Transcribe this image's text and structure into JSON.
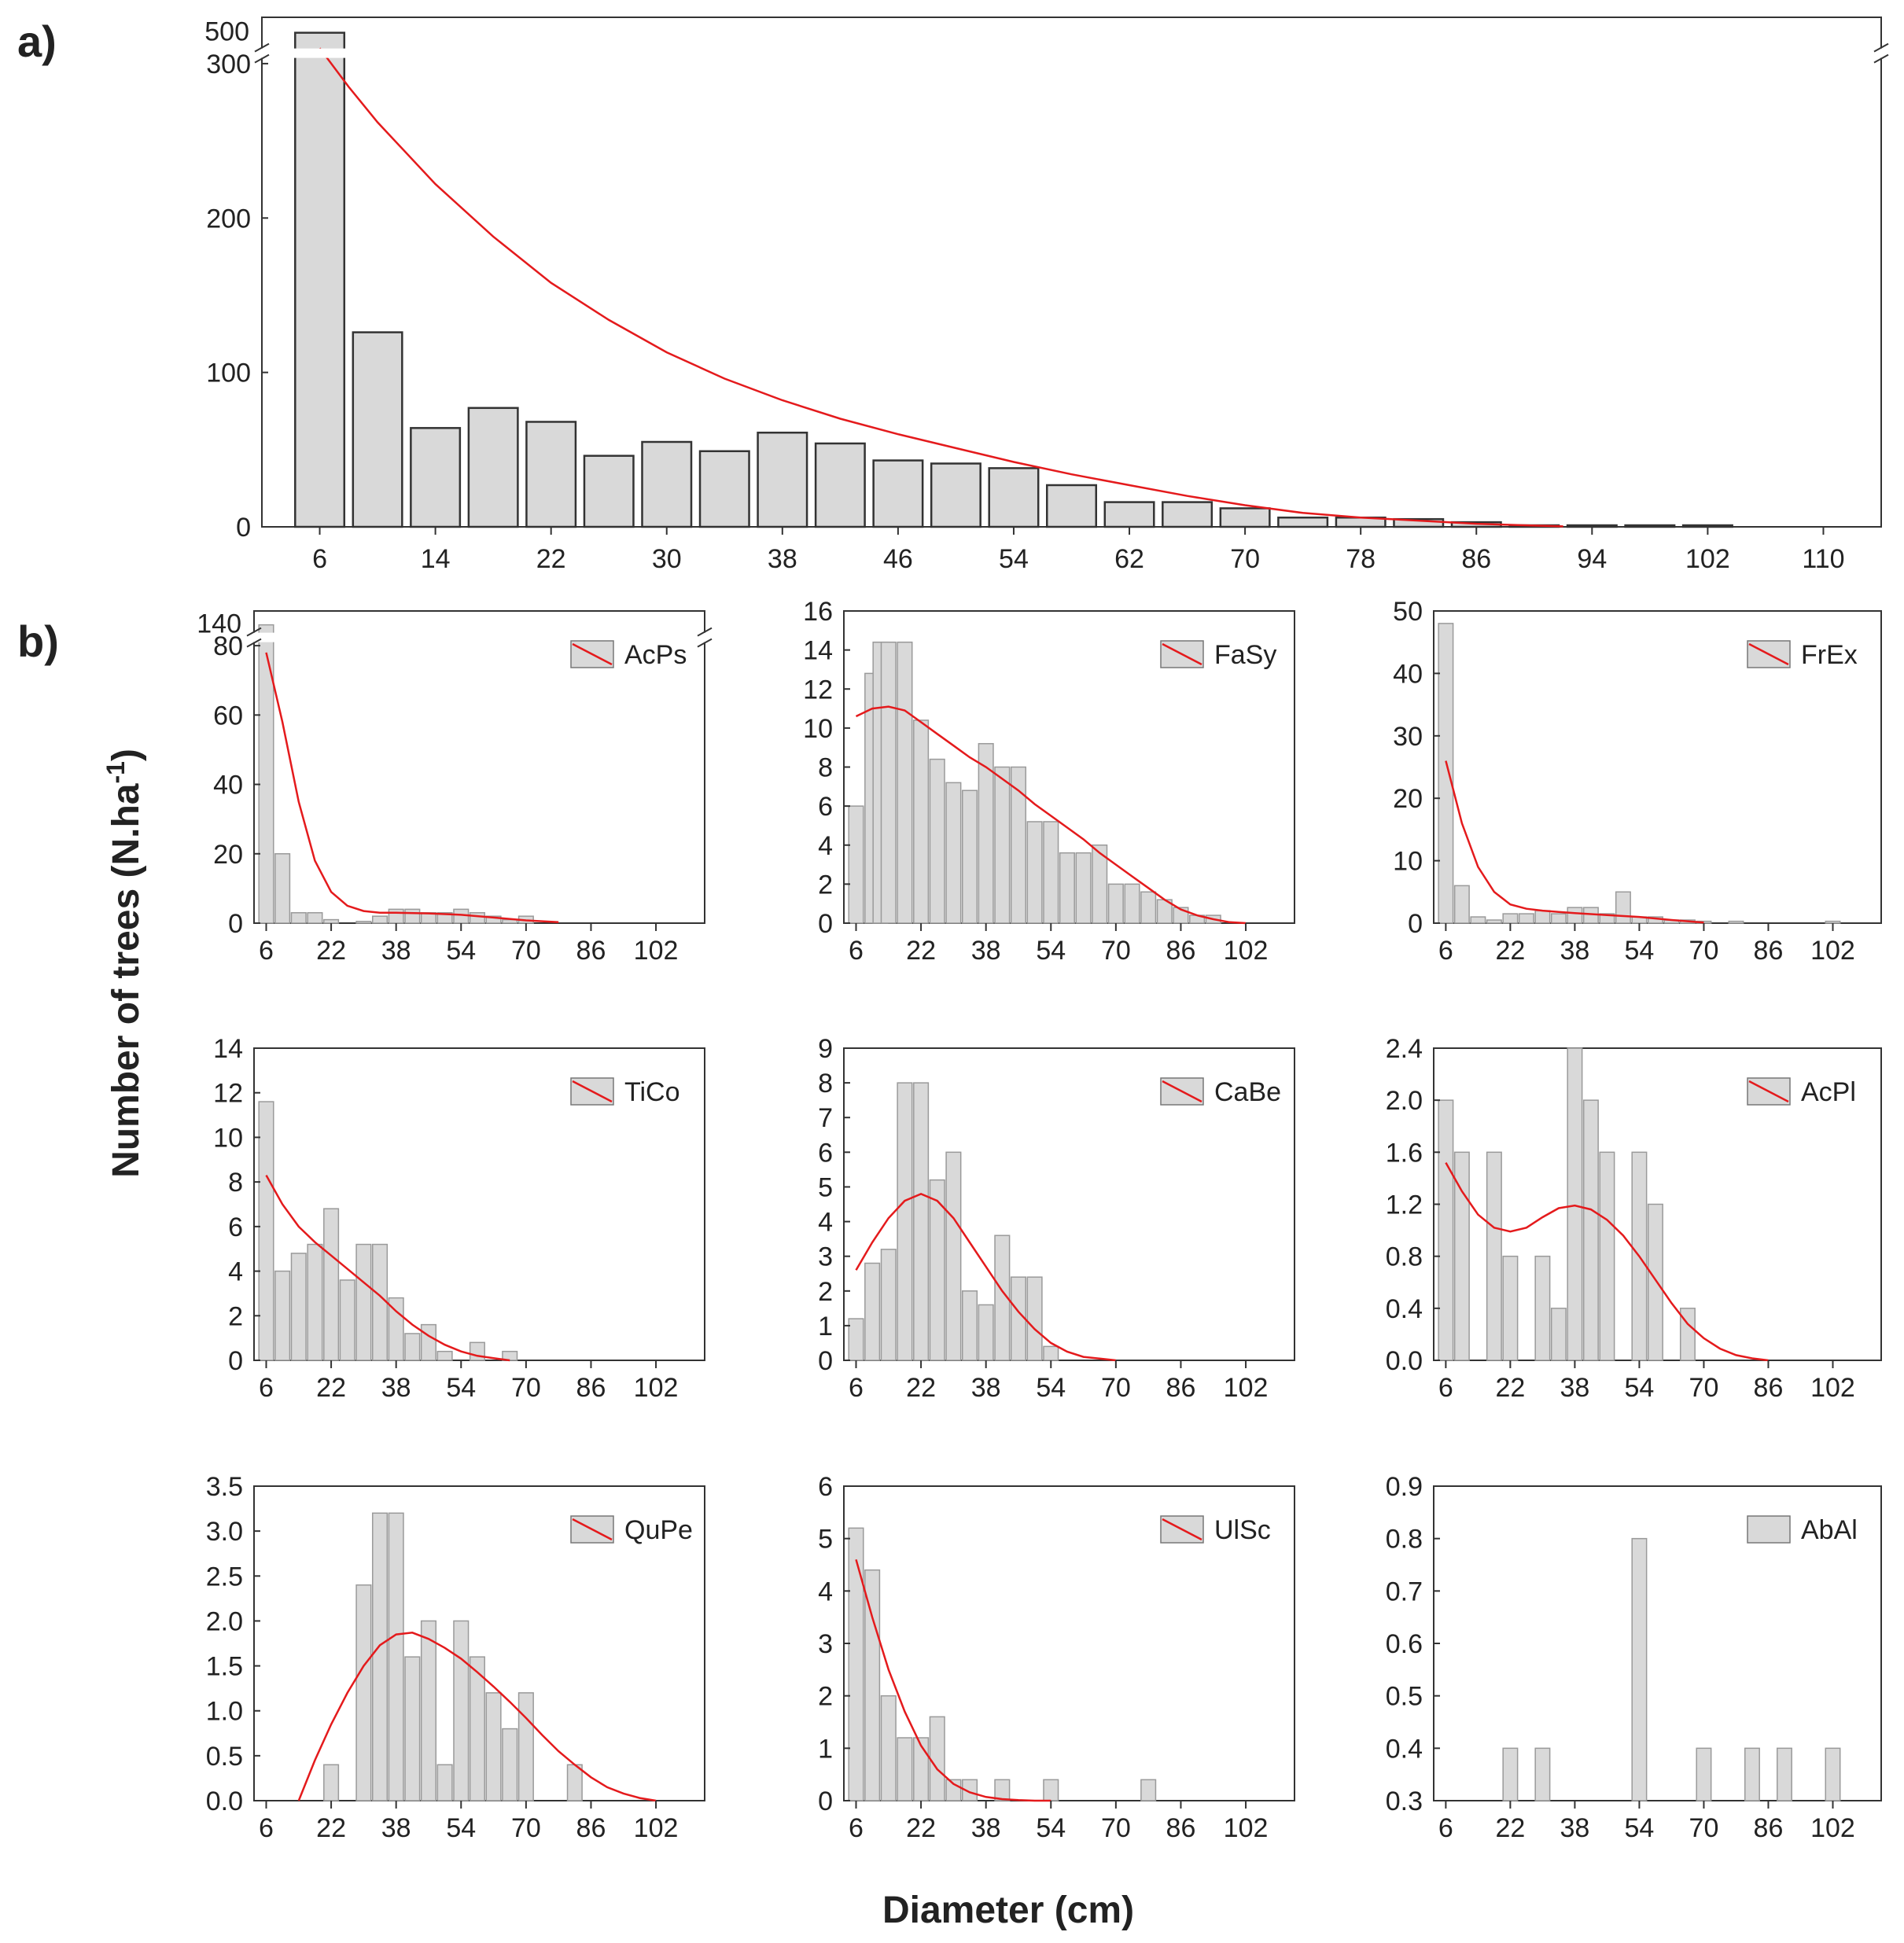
{
  "figure": {
    "panel_a_label": "a)",
    "panel_b_label": "b)",
    "ylabel_main": "Number of trees (N.ha",
    "ylabel_sup": "-1",
    "ylabel_end": ")",
    "xlabel": "Diameter (cm)"
  },
  "colors": {
    "bar_fill": "#d9d9d9",
    "bar_stroke": "#555555",
    "fit_line": "#e41a1c",
    "axis": "#333333"
  },
  "chart_data": [
    {
      "id": "a",
      "type": "bar",
      "title": "",
      "xlabel": "Diameter (cm)",
      "ylabel": "Number of trees (N.ha-1)",
      "xlim": [
        2,
        114
      ],
      "x_ticks": [
        6,
        14,
        22,
        30,
        38,
        46,
        54,
        62,
        70,
        78,
        86,
        94,
        102,
        110
      ],
      "ylim": [
        0,
        330
      ],
      "y_ticks": [
        0,
        100,
        200,
        300
      ],
      "y_tick_labels": [
        "0",
        "100",
        "200",
        "300"
      ],
      "axis_break": {
        "display_value": 320,
        "label": "500"
      },
      "bar_width": 3.4,
      "x": [
        6,
        10,
        14,
        18,
        22,
        26,
        30,
        34,
        38,
        42,
        46,
        50,
        54,
        58,
        62,
        66,
        70,
        74,
        78,
        82,
        86,
        90,
        94,
        98,
        102,
        106,
        110
      ],
      "values": [
        500,
        126,
        64,
        77,
        68,
        46,
        55,
        49,
        61,
        54,
        43,
        41,
        38,
        27,
        16,
        16,
        12,
        6,
        6,
        5,
        3,
        1,
        1,
        1,
        1,
        0,
        0
      ],
      "fit": {
        "x": [
          6,
          8,
          10,
          14,
          18,
          22,
          26,
          30,
          34,
          38,
          42,
          46,
          50,
          54,
          58,
          62,
          66,
          70,
          74,
          78,
          82,
          86,
          90,
          92
        ],
        "y": [
          310,
          285,
          262,
          222,
          188,
          158,
          134,
          113,
          96,
          82,
          70,
          60,
          51,
          42,
          34,
          27,
          20,
          14,
          9,
          6,
          4,
          2,
          0.8,
          0.3
        ]
      },
      "legend": ""
    },
    {
      "id": "AcPs",
      "type": "bar",
      "legend": "AcPs",
      "xlim": [
        3,
        114
      ],
      "x_ticks": [
        6,
        22,
        38,
        54,
        70,
        86,
        102
      ],
      "ylim": [
        0,
        90
      ],
      "y_ticks": [
        0,
        20,
        40,
        60,
        80
      ],
      "y_tick_labels": [
        "0",
        "20",
        "40",
        "60",
        "80"
      ],
      "axis_break": {
        "display_value": 86,
        "label": "140"
      },
      "bar_width": 3.6,
      "x": [
        6,
        10,
        14,
        18,
        22,
        26,
        30,
        34,
        38,
        42,
        46,
        50,
        54,
        58,
        62,
        66,
        70
      ],
      "values": [
        140,
        20,
        3,
        3,
        1,
        0,
        0.5,
        2,
        4,
        4,
        3,
        3,
        4,
        3,
        2,
        1,
        2
      ],
      "fit": {
        "x": [
          6,
          10,
          14,
          18,
          22,
          26,
          30,
          34,
          38,
          46,
          54,
          62,
          70,
          78
        ],
        "y": [
          78,
          58,
          35,
          18,
          9,
          5,
          3.5,
          3,
          3,
          2.8,
          2.4,
          1.6,
          0.8,
          0.3
        ]
      }
    },
    {
      "id": "FaSy",
      "type": "bar",
      "legend": "FaSy",
      "xlim": [
        3,
        114
      ],
      "x_ticks": [
        6,
        22,
        38,
        54,
        70,
        86,
        102
      ],
      "ylim": [
        0,
        16
      ],
      "y_ticks": [
        0,
        2,
        4,
        6,
        8,
        10,
        12,
        14,
        16
      ],
      "y_tick_labels": [
        "0",
        "2",
        "4",
        "6",
        "8",
        "10",
        "12",
        "14",
        "16"
      ],
      "bar_width": 3.6,
      "x": [
        6,
        10,
        12,
        14,
        18,
        22,
        26,
        30,
        34,
        38,
        42,
        46,
        50,
        54,
        58,
        62,
        66,
        70,
        74,
        78,
        82,
        86,
        90,
        94
      ],
      "values": [
        6,
        12.8,
        14.4,
        14.4,
        14.4,
        10.4,
        8.4,
        7.2,
        6.8,
        9.2,
        8.0,
        8.0,
        5.2,
        5.2,
        3.6,
        3.6,
        4.0,
        2.0,
        2.0,
        1.6,
        1.2,
        0.8,
        0.4,
        0.4
      ],
      "fit": {
        "x": [
          6,
          10,
          14,
          18,
          22,
          26,
          30,
          34,
          38,
          42,
          46,
          50,
          54,
          58,
          62,
          66,
          70,
          74,
          78,
          82,
          86,
          90,
          94,
          98,
          102
        ],
        "y": [
          10.6,
          11.0,
          11.1,
          10.9,
          10.3,
          9.7,
          9.1,
          8.5,
          8.0,
          7.4,
          6.8,
          6.1,
          5.5,
          4.9,
          4.3,
          3.6,
          3.0,
          2.4,
          1.8,
          1.2,
          0.7,
          0.4,
          0.2,
          0.05,
          0
        ]
      }
    },
    {
      "id": "FrEx",
      "type": "bar",
      "legend": "FrEx",
      "xlim": [
        3,
        114
      ],
      "x_ticks": [
        6,
        22,
        38,
        54,
        70,
        86,
        102
      ],
      "ylim": [
        0,
        50
      ],
      "y_ticks": [
        0,
        10,
        20,
        30,
        40,
        50
      ],
      "y_tick_labels": [
        "0",
        "10",
        "20",
        "30",
        "40",
        "50"
      ],
      "bar_width": 3.6,
      "x": [
        6,
        10,
        14,
        18,
        22,
        26,
        30,
        34,
        38,
        42,
        46,
        50,
        54,
        58,
        62,
        66,
        70,
        74,
        78,
        82,
        86,
        90,
        94,
        98,
        102
      ],
      "values": [
        48,
        6,
        1,
        0.5,
        1.5,
        1.5,
        2,
        1.5,
        2.5,
        2.5,
        1.5,
        5,
        1,
        1,
        0.5,
        0.5,
        0.3,
        0,
        0.3,
        0,
        0,
        0,
        0,
        0,
        0.3
      ],
      "fit": {
        "x": [
          6,
          10,
          14,
          18,
          22,
          26,
          30,
          34,
          38,
          46,
          54,
          62,
          70
        ],
        "y": [
          26,
          16,
          9,
          5,
          3,
          2.3,
          2,
          1.8,
          1.6,
          1.3,
          1.0,
          0.5,
          0.1
        ]
      }
    },
    {
      "id": "TiCo",
      "type": "bar",
      "legend": "TiCo",
      "xlim": [
        3,
        114
      ],
      "x_ticks": [
        6,
        22,
        38,
        54,
        70,
        86,
        102
      ],
      "ylim": [
        0,
        14
      ],
      "y_ticks": [
        0,
        2,
        4,
        6,
        8,
        10,
        12,
        14
      ],
      "y_tick_labels": [
        "0",
        "2",
        "4",
        "6",
        "8",
        "10",
        "12",
        "14"
      ],
      "bar_width": 3.6,
      "x": [
        6,
        10,
        14,
        18,
        22,
        26,
        30,
        34,
        38,
        42,
        46,
        50,
        54,
        58,
        62,
        66
      ],
      "values": [
        11.6,
        4.0,
        4.8,
        5.2,
        6.8,
        3.6,
        5.2,
        5.2,
        2.8,
        1.2,
        1.6,
        0.4,
        0,
        0.8,
        0,
        0.4
      ],
      "fit": {
        "x": [
          6,
          10,
          14,
          18,
          22,
          26,
          30,
          34,
          38,
          42,
          46,
          50,
          54,
          58,
          62,
          66
        ],
        "y": [
          8.3,
          7.0,
          6.0,
          5.3,
          4.7,
          4.1,
          3.5,
          2.9,
          2.2,
          1.6,
          1.1,
          0.7,
          0.4,
          0.2,
          0.1,
          0
        ]
      }
    },
    {
      "id": "CaBe",
      "type": "bar",
      "legend": "CaBe",
      "xlim": [
        3,
        114
      ],
      "x_ticks": [
        6,
        22,
        38,
        54,
        70,
        86,
        102
      ],
      "ylim": [
        0,
        9
      ],
      "y_ticks": [
        0,
        1,
        2,
        3,
        4,
        5,
        6,
        7,
        8,
        9
      ],
      "y_tick_labels": [
        "0",
        "1",
        "2",
        "3",
        "4",
        "5",
        "6",
        "7",
        "8",
        "9"
      ],
      "bar_width": 3.6,
      "x": [
        6,
        10,
        14,
        18,
        22,
        26,
        30,
        34,
        38,
        42,
        46,
        50,
        54
      ],
      "values": [
        1.2,
        2.8,
        3.2,
        8.0,
        8.0,
        5.2,
        6.0,
        2.0,
        1.6,
        3.6,
        2.4,
        2.4,
        0.4
      ],
      "fit": {
        "x": [
          6,
          10,
          14,
          18,
          22,
          26,
          30,
          34,
          38,
          42,
          46,
          50,
          54,
          58,
          62,
          66,
          70
        ],
        "y": [
          2.6,
          3.4,
          4.1,
          4.6,
          4.8,
          4.6,
          4.1,
          3.4,
          2.7,
          2.0,
          1.4,
          0.9,
          0.5,
          0.25,
          0.1,
          0.05,
          0
        ]
      }
    },
    {
      "id": "AcPl",
      "type": "bar",
      "legend": "AcPl",
      "xlim": [
        3,
        114
      ],
      "x_ticks": [
        6,
        22,
        38,
        54,
        70,
        86,
        102
      ],
      "ylim": [
        0,
        2.4
      ],
      "y_ticks": [
        0,
        0.4,
        0.8,
        1.2,
        1.6,
        2.0,
        2.4
      ],
      "y_tick_labels": [
        "0.0",
        "0.4",
        "0.8",
        "1.2",
        "1.6",
        "2.0",
        "2.4"
      ],
      "bar_width": 3.6,
      "x": [
        6,
        10,
        18,
        22,
        30,
        34,
        38,
        42,
        46,
        54,
        58,
        66
      ],
      "values": [
        2.0,
        1.6,
        1.6,
        0.8,
        0.8,
        0.4,
        2.4,
        2.0,
        1.6,
        1.6,
        1.2,
        0.4
      ],
      "fit": {
        "x": [
          6,
          10,
          14,
          18,
          22,
          26,
          30,
          34,
          38,
          42,
          46,
          50,
          54,
          58,
          62,
          66,
          70,
          74,
          78,
          82,
          86
        ],
        "y": [
          1.52,
          1.3,
          1.12,
          1.02,
          0.99,
          1.02,
          1.1,
          1.17,
          1.19,
          1.16,
          1.08,
          0.96,
          0.8,
          0.62,
          0.44,
          0.28,
          0.17,
          0.09,
          0.04,
          0.015,
          0
        ]
      }
    },
    {
      "id": "QuPe",
      "type": "bar",
      "legend": "QuPe",
      "xlim": [
        3,
        114
      ],
      "x_ticks": [
        6,
        22,
        38,
        54,
        70,
        86,
        102
      ],
      "ylim": [
        0,
        3.5
      ],
      "y_ticks": [
        0,
        0.5,
        1.0,
        1.5,
        2.0,
        2.5,
        3.0,
        3.5
      ],
      "y_tick_labels": [
        "0.0",
        "0.5",
        "1.0",
        "1.5",
        "2.0",
        "2.5",
        "3.0",
        "3.5"
      ],
      "bar_width": 3.6,
      "x": [
        22,
        30,
        34,
        38,
        42,
        46,
        50,
        54,
        58,
        62,
        66,
        70,
        82
      ],
      "values": [
        0.4,
        2.4,
        3.2,
        3.2,
        1.6,
        2.0,
        0.4,
        2.0,
        1.6,
        1.2,
        0.8,
        1.2,
        0.4
      ],
      "fit": {
        "x": [
          14,
          18,
          22,
          26,
          30,
          34,
          38,
          42,
          46,
          50,
          54,
          58,
          62,
          66,
          70,
          74,
          78,
          82,
          86,
          90,
          94,
          98,
          102
        ],
        "y": [
          0,
          0.45,
          0.85,
          1.2,
          1.5,
          1.73,
          1.85,
          1.87,
          1.8,
          1.7,
          1.58,
          1.43,
          1.27,
          1.1,
          0.92,
          0.73,
          0.55,
          0.4,
          0.26,
          0.15,
          0.08,
          0.03,
          0
        ]
      }
    },
    {
      "id": "UlSc",
      "type": "bar",
      "legend": "UlSc",
      "xlim": [
        3,
        114
      ],
      "x_ticks": [
        6,
        22,
        38,
        54,
        70,
        86,
        102
      ],
      "ylim": [
        0,
        6
      ],
      "y_ticks": [
        0,
        1,
        2,
        3,
        4,
        5,
        6
      ],
      "y_tick_labels": [
        "0",
        "1",
        "2",
        "3",
        "4",
        "5",
        "6"
      ],
      "bar_width": 3.6,
      "x": [
        6,
        10,
        14,
        18,
        22,
        26,
        30,
        34,
        38,
        42,
        46,
        50,
        54,
        78
      ],
      "values": [
        5.2,
        4.4,
        2.0,
        1.2,
        1.2,
        1.6,
        0.4,
        0.4,
        0,
        0.4,
        0,
        0,
        0.4,
        0.4
      ],
      "fit": {
        "x": [
          6,
          10,
          14,
          18,
          22,
          26,
          30,
          34,
          38,
          42,
          46,
          50,
          54
        ],
        "y": [
          4.6,
          3.5,
          2.5,
          1.7,
          1.05,
          0.6,
          0.32,
          0.16,
          0.07,
          0.03,
          0.01,
          0,
          0
        ]
      }
    },
    {
      "id": "AbAl",
      "type": "bar",
      "legend": "AbAl",
      "xlim": [
        3,
        114
      ],
      "x_ticks": [
        6,
        22,
        38,
        54,
        70,
        86,
        102
      ],
      "ylim": [
        0.3,
        0.9
      ],
      "y_ticks": [
        0.3,
        0.4,
        0.5,
        0.6,
        0.7,
        0.8,
        0.9
      ],
      "y_tick_labels": [
        "0.3",
        "0.4",
        "0.5",
        "0.6",
        "0.7",
        "0.8",
        "0.9"
      ],
      "bar_width": 3.6,
      "x": [
        22,
        30,
        54,
        70,
        82,
        90,
        102
      ],
      "values": [
        0.4,
        0.4,
        0.8,
        0.4,
        0.4,
        0.4,
        0.4
      ],
      "fit": null
    }
  ]
}
